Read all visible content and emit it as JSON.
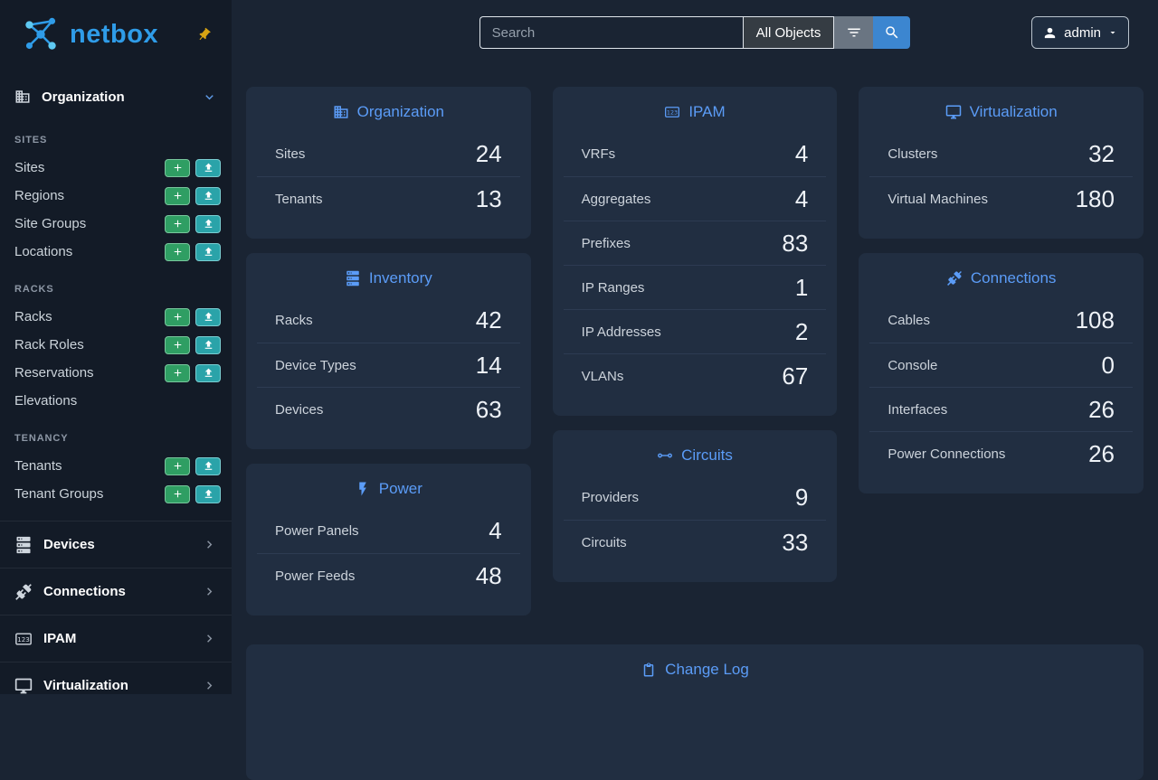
{
  "sidebar": {
    "logo_text": "netbox",
    "logo_icon": "netbox-logo-icon",
    "pin_icon": "pin-icon",
    "organization_label": "Organization",
    "organization_icon": "domain-icon",
    "organization_chevron": "chevron-down-icon",
    "sections": [
      {
        "title": "SITES",
        "items": [
          {
            "label": "Sites",
            "actions": [
              "add",
              "import"
            ]
          },
          {
            "label": "Regions",
            "actions": [
              "add",
              "import"
            ]
          },
          {
            "label": "Site Groups",
            "actions": [
              "add",
              "import"
            ]
          },
          {
            "label": "Locations",
            "actions": [
              "add",
              "import"
            ]
          }
        ]
      },
      {
        "title": "RACKS",
        "items": [
          {
            "label": "Racks",
            "actions": [
              "add",
              "import"
            ]
          },
          {
            "label": "Rack Roles",
            "actions": [
              "add",
              "import"
            ]
          },
          {
            "label": "Reservations",
            "actions": [
              "add",
              "import"
            ]
          },
          {
            "label": "Elevations",
            "actions": []
          }
        ]
      },
      {
        "title": "TENANCY",
        "items": [
          {
            "label": "Tenants",
            "actions": [
              "add",
              "import"
            ]
          },
          {
            "label": "Tenant Groups",
            "actions": [
              "add",
              "import"
            ]
          }
        ]
      }
    ],
    "groups": [
      {
        "label": "Devices",
        "icon": "server-icon"
      },
      {
        "label": "Connections",
        "icon": "connection-icon"
      },
      {
        "label": "IPAM",
        "icon": "counter-icon"
      },
      {
        "label": "Virtualization",
        "icon": "monitor-icon"
      }
    ]
  },
  "header": {
    "search_placeholder": "Search",
    "search_icon": "search-icon",
    "filter_icon": "filter-icon",
    "scope_button_label": "All Objects",
    "user_label": "admin",
    "user_icon": "user-icon",
    "user_caret": "caret-down-icon"
  },
  "dashboard": {
    "columns": [
      [
        {
          "title": "Organization",
          "icon": "domain-icon",
          "rows": [
            {
              "label": "Sites",
              "value": "24"
            },
            {
              "label": "Tenants",
              "value": "13"
            }
          ]
        },
        {
          "title": "Inventory",
          "icon": "server-icon",
          "rows": [
            {
              "label": "Racks",
              "value": "42"
            },
            {
              "label": "Device Types",
              "value": "14"
            },
            {
              "label": "Devices",
              "value": "63"
            }
          ]
        },
        {
          "title": "Power",
          "icon": "lightning-icon",
          "rows": [
            {
              "label": "Power Panels",
              "value": "4"
            },
            {
              "label": "Power Feeds",
              "value": "48"
            }
          ]
        }
      ],
      [
        {
          "title": "IPAM",
          "icon": "counter-icon",
          "rows": [
            {
              "label": "VRFs",
              "value": "4"
            },
            {
              "label": "Aggregates",
              "value": "4"
            },
            {
              "label": "Prefixes",
              "value": "83"
            },
            {
              "label": "IP Ranges",
              "value": "1"
            },
            {
              "label": "IP Addresses",
              "value": "2"
            },
            {
              "label": "VLANs",
              "value": "67"
            }
          ]
        },
        {
          "title": "Circuits",
          "icon": "transit-icon",
          "rows": [
            {
              "label": "Providers",
              "value": "9"
            },
            {
              "label": "Circuits",
              "value": "33"
            }
          ]
        }
      ],
      [
        {
          "title": "Virtualization",
          "icon": "monitor-icon",
          "rows": [
            {
              "label": "Clusters",
              "value": "32"
            },
            {
              "label": "Virtual Machines",
              "value": "180"
            }
          ]
        },
        {
          "title": "Connections",
          "icon": "connection-icon",
          "rows": [
            {
              "label": "Cables",
              "value": "108"
            },
            {
              "label": "Console",
              "value": "0"
            },
            {
              "label": "Interfaces",
              "value": "26"
            },
            {
              "label": "Power Connections",
              "value": "26"
            }
          ]
        }
      ]
    ],
    "changelog": {
      "title": "Change Log",
      "icon": "changelog-icon"
    }
  }
}
